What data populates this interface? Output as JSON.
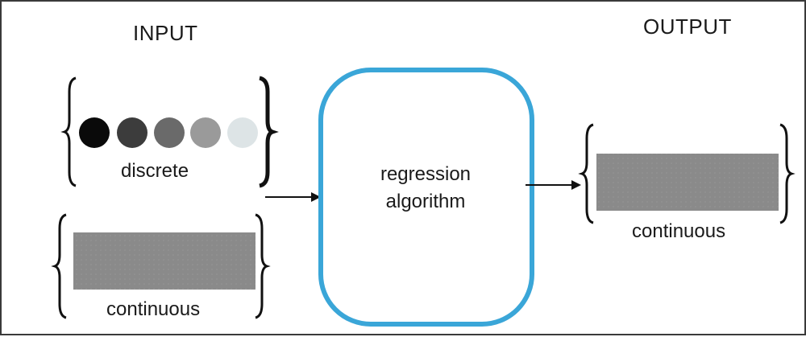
{
  "input": {
    "heading": "INPUT",
    "discrete_label": "discrete",
    "continuous_label": "continuous",
    "circle_colors": [
      "#0a0a0a",
      "#3c3c3c",
      "#6a6a6a",
      "#9a9a9a",
      "#dde4e6"
    ]
  },
  "algorithm": {
    "line1": "regression",
    "line2": "algorithm",
    "border_color": "#3aa6d8"
  },
  "output": {
    "heading": "OUTPUT",
    "continuous_label": "continuous"
  },
  "colors": {
    "bar": "#8a8a8a",
    "bracket": "#111111",
    "arrow": "#111111"
  }
}
